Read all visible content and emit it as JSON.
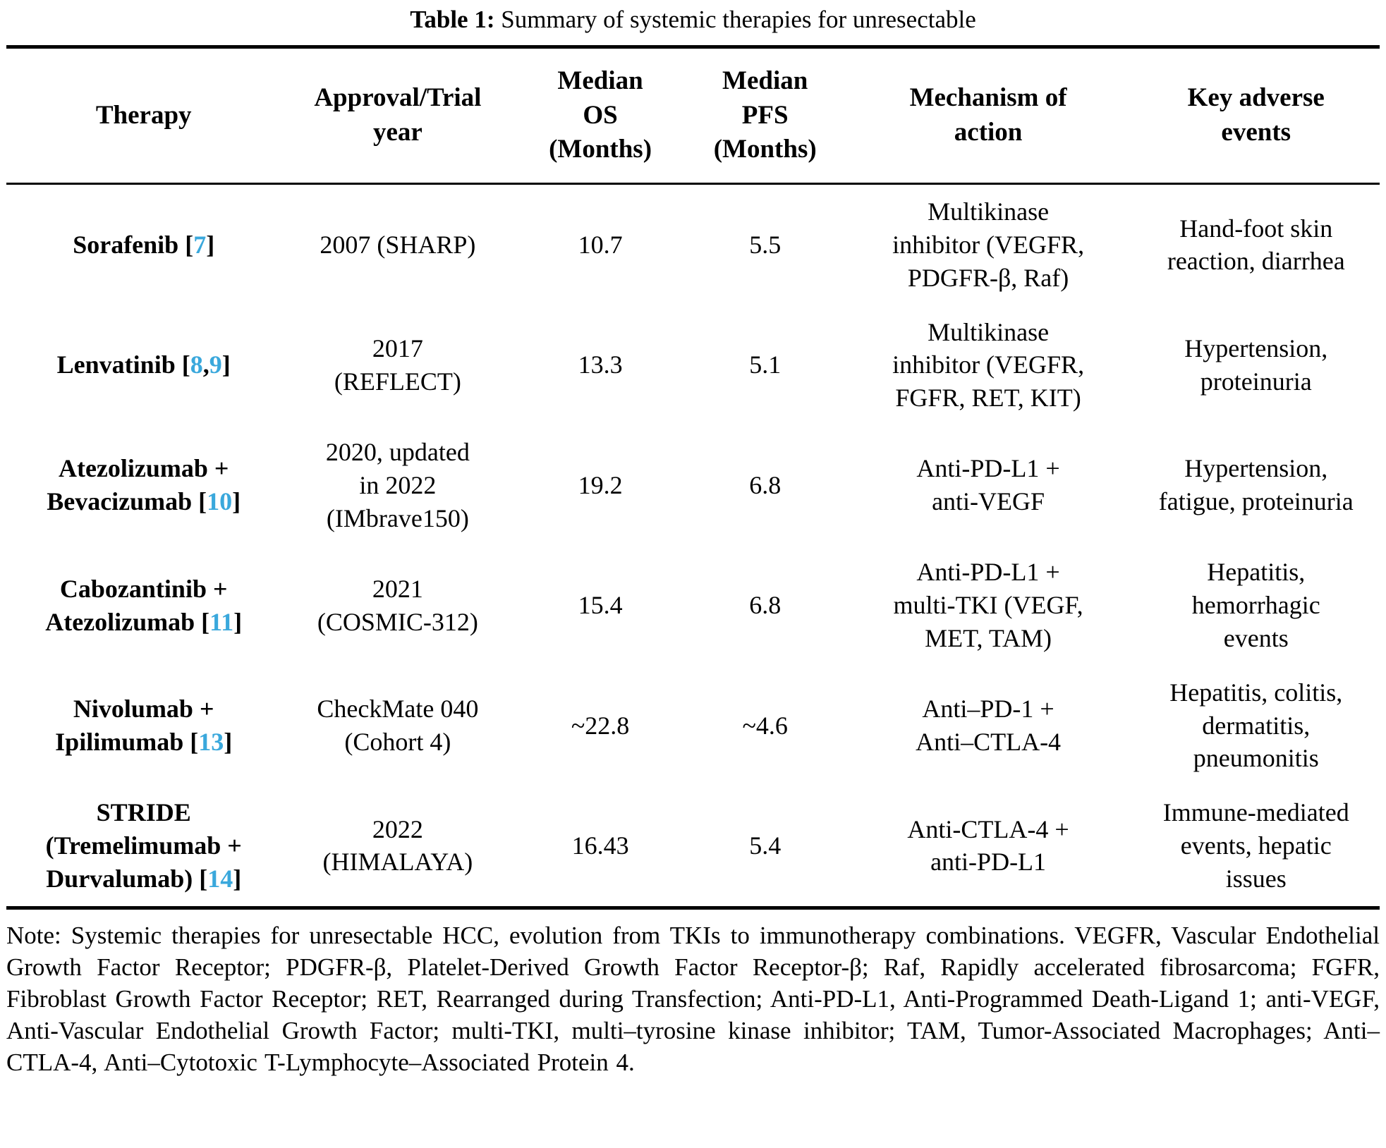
{
  "page": {
    "background_color": "#ffffff",
    "text_color": "#000000",
    "cite_color": "#3aa8dc"
  },
  "caption": {
    "prefix": "Table 1:",
    "text": " Summary of systemic therapies for unresectable"
  },
  "table": {
    "headers": {
      "therapy": "Therapy",
      "approval": "Approval/Trial\nyear",
      "os": "Median\nOS\n(Months)",
      "pfs": "Median\nPFS\n(Months)",
      "mechanism": "Mechanism of\naction",
      "adverse": "Key adverse\nevents"
    },
    "rows": [
      {
        "therapy_pre": "Sorafenib [",
        "cite": "7",
        "therapy_post": "]",
        "approval": "2007 (SHARP)",
        "os": "10.7",
        "pfs": "5.5",
        "mechanism": "Multikinase\ninhibitor (VEGFR,\nPDGFR-β, Raf)",
        "adverse": "Hand-foot skin\nreaction, diarrhea"
      },
      {
        "therapy_pre": "Lenvatinib [",
        "cite": "8",
        "cite_sep": ",",
        "cite2": "9",
        "therapy_post": "]",
        "approval": "2017\n(REFLECT)",
        "os": "13.3",
        "pfs": "5.1",
        "mechanism": "Multikinase\ninhibitor (VEGFR,\nFGFR, RET, KIT)",
        "adverse": "Hypertension,\nproteinuria"
      },
      {
        "therapy_pre": "Atezolizumab +\nBevacizumab [",
        "cite": "10",
        "therapy_post": "]",
        "approval": "2020, updated\nin 2022\n(IMbrave150)",
        "os": "19.2",
        "pfs": "6.8",
        "mechanism": "Anti-PD-L1 +\nanti-VEGF",
        "adverse": "Hypertension,\nfatigue, proteinuria"
      },
      {
        "therapy_pre": "Cabozantinib +\nAtezolizumab [",
        "cite": "11",
        "therapy_post": "]",
        "approval": "2021\n(COSMIC-312)",
        "os": "15.4",
        "pfs": "6.8",
        "mechanism": "Anti-PD-L1 +\nmulti-TKI (VEGF,\nMET, TAM)",
        "adverse": "Hepatitis,\nhemorrhagic\nevents"
      },
      {
        "therapy_pre": "Nivolumab +\nIpilimumab [",
        "cite": "13",
        "therapy_post": "]",
        "approval": "CheckMate 040\n(Cohort 4)",
        "os": "~22.8",
        "pfs": "~4.6",
        "mechanism": "Anti–PD-1 +\nAnti–CTLA-4",
        "adverse": "Hepatitis, colitis,\ndermatitis,\npneumonitis"
      },
      {
        "therapy_pre": "STRIDE\n(Tremelimumab +\nDurvalumab) [",
        "cite": "14",
        "therapy_post": "]",
        "approval": "2022\n(HIMALAYA)",
        "os": "16.43",
        "pfs": "5.4",
        "mechanism": "Anti-CTLA-4 +\nanti-PD-L1",
        "adverse": "Immune-mediated\nevents, hepatic\nissues"
      }
    ]
  },
  "note": "Note: Systemic therapies for unresectable HCC, evolution from TKIs to immunotherapy combinations. VEGFR, Vascular Endothelial Growth Factor Receptor; PDGFR-β, Platelet-Derived Growth Factor Receptor-β; Raf, Rapidly accelerated fibrosarcoma; FGFR, Fibroblast Growth Factor Receptor; RET, Rearranged during Transfection; Anti-PD-L1, Anti-Programmed Death-Ligand 1; anti-VEGF, Anti-Vascular Endothelial Growth Factor; multi-TKI, multi–tyrosine kinase inhibitor; TAM, Tumor-Associated Macrophages; Anti–CTLA-4, Anti–Cytotoxic T-Lymphocyte–Associated Protein 4."
}
